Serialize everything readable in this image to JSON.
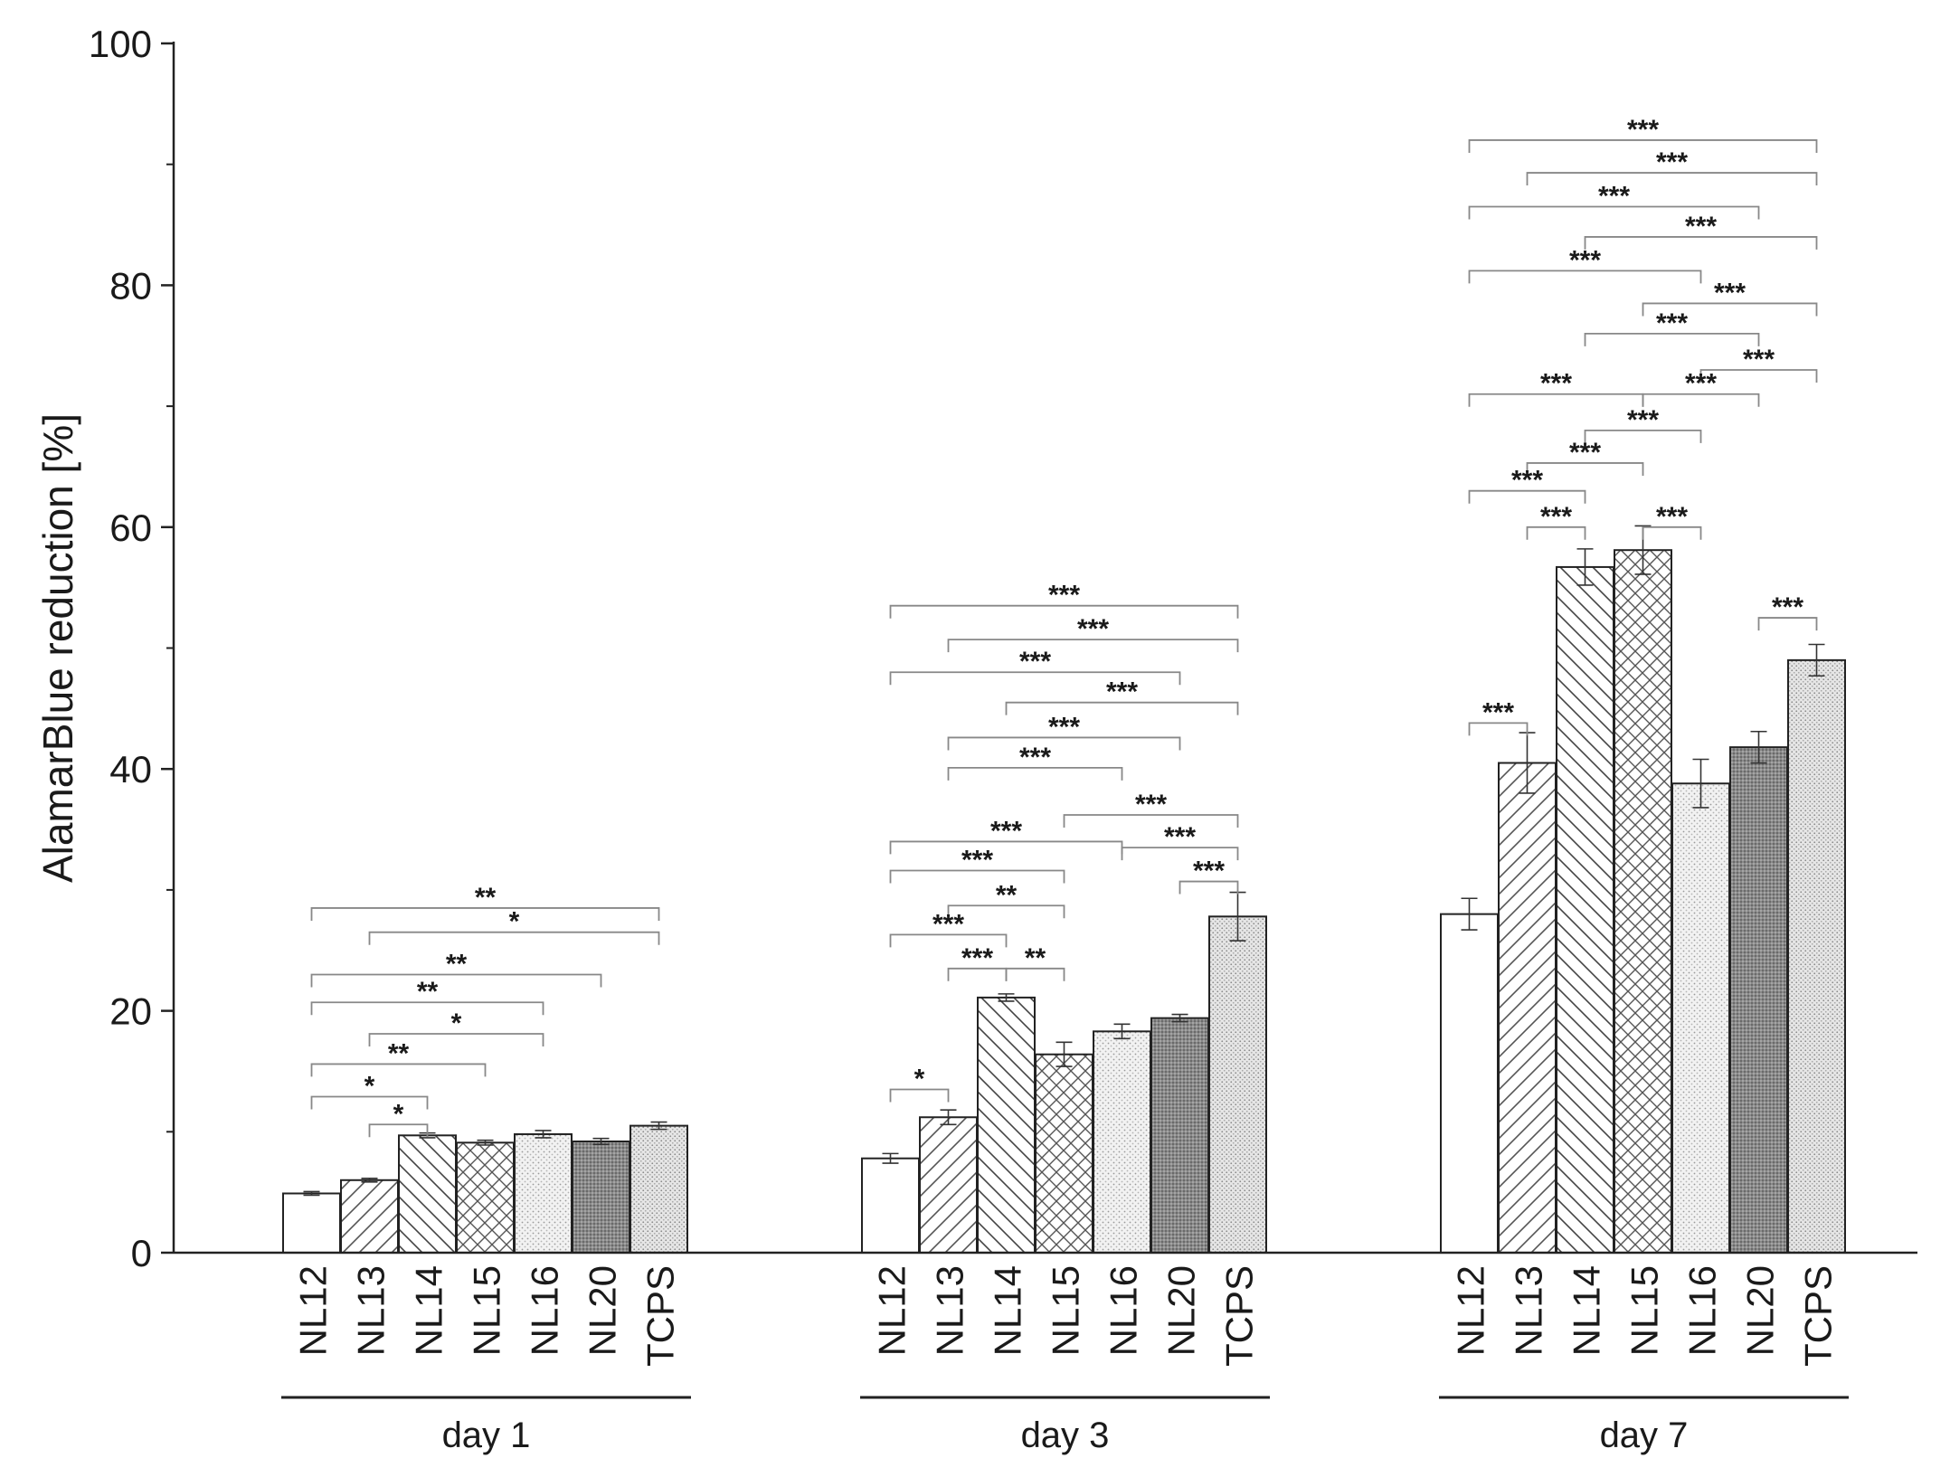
{
  "chart_data": {
    "type": "bar",
    "ylabel": "AlamarBlue reduction [%]",
    "ylim": [
      0,
      100
    ],
    "yticks": [
      "0",
      "20",
      "40",
      "60",
      "80",
      "100"
    ],
    "minor_y_step": 10,
    "grid": false,
    "categories": [
      "NL12",
      "NL13",
      "NL14",
      "NL15",
      "NL16",
      "NL20",
      "TCPS"
    ],
    "patterns": [
      "none",
      "diag-right",
      "diag-left",
      "crosshatch",
      "dots-light",
      "dense-dark",
      "dots"
    ],
    "groups": [
      {
        "name": "day 1",
        "values": [
          4.9,
          6.0,
          9.7,
          9.1,
          9.8,
          9.2,
          10.5
        ],
        "errors": [
          0.15,
          0.15,
          0.2,
          0.2,
          0.3,
          0.25,
          0.3
        ],
        "significance": [
          {
            "from": 0,
            "to": 6,
            "y": 28.5,
            "label": "**"
          },
          {
            "from": 1,
            "to": 6,
            "y": 26.5,
            "label": "*"
          },
          {
            "from": 0,
            "to": 5,
            "y": 23.0,
            "label": "**"
          },
          {
            "from": 0,
            "to": 4,
            "y": 20.7,
            "label": "**"
          },
          {
            "from": 1,
            "to": 4,
            "y": 18.1,
            "label": "*"
          },
          {
            "from": 0,
            "to": 3,
            "y": 15.6,
            "label": "**"
          },
          {
            "from": 0,
            "to": 2,
            "y": 12.9,
            "label": "*"
          },
          {
            "from": 1,
            "to": 2,
            "y": 10.6,
            "label": "*"
          }
        ]
      },
      {
        "name": "day 3",
        "values": [
          7.8,
          11.2,
          21.1,
          16.4,
          18.3,
          19.4,
          27.8
        ],
        "errors": [
          0.4,
          0.6,
          0.3,
          1.0,
          0.6,
          0.3,
          2.0
        ],
        "significance": [
          {
            "from": 0,
            "to": 6,
            "y": 53.5,
            "label": "***"
          },
          {
            "from": 1,
            "to": 6,
            "y": 50.7,
            "label": "***"
          },
          {
            "from": 0,
            "to": 5,
            "y": 48.0,
            "label": "***"
          },
          {
            "from": 2,
            "to": 6,
            "y": 45.5,
            "label": "***"
          },
          {
            "from": 1,
            "to": 5,
            "y": 42.6,
            "label": "***"
          },
          {
            "from": 1,
            "to": 4,
            "y": 40.1,
            "label": "***"
          },
          {
            "from": 3,
            "to": 6,
            "y": 36.2,
            "label": "***"
          },
          {
            "from": 0,
            "to": 4,
            "y": 34.0,
            "label": "***"
          },
          {
            "from": 4,
            "to": 6,
            "y": 33.5,
            "label": "***"
          },
          {
            "from": 0,
            "to": 3,
            "y": 31.6,
            "label": "***"
          },
          {
            "from": 5,
            "to": 6,
            "y": 30.7,
            "label": "***"
          },
          {
            "from": 1,
            "to": 3,
            "y": 28.7,
            "label": "**"
          },
          {
            "from": 0,
            "to": 2,
            "y": 26.3,
            "label": "***"
          },
          {
            "from": 1,
            "to": 2,
            "y": 23.5,
            "label": "***"
          },
          {
            "from": 2,
            "to": 3,
            "y": 23.5,
            "label": "**"
          },
          {
            "from": 0,
            "to": 1,
            "y": 13.5,
            "label": "*"
          }
        ]
      },
      {
        "name": "day 7",
        "values": [
          28.0,
          40.5,
          56.7,
          58.1,
          38.8,
          41.8,
          49.0
        ],
        "errors": [
          1.3,
          2.5,
          1.5,
          2.0,
          2.0,
          1.3,
          1.3
        ],
        "significance": [
          {
            "from": 0,
            "to": 6,
            "y": 92.0,
            "label": "***"
          },
          {
            "from": 1,
            "to": 6,
            "y": 89.3,
            "label": "***"
          },
          {
            "from": 0,
            "to": 5,
            "y": 86.5,
            "label": "***"
          },
          {
            "from": 2,
            "to": 6,
            "y": 84.0,
            "label": "***"
          },
          {
            "from": 0,
            "to": 4,
            "y": 81.2,
            "label": "***"
          },
          {
            "from": 3,
            "to": 6,
            "y": 78.5,
            "label": "***"
          },
          {
            "from": 2,
            "to": 5,
            "y": 76.0,
            "label": "***"
          },
          {
            "from": 4,
            "to": 6,
            "y": 73.0,
            "label": "***"
          },
          {
            "from": 0,
            "to": 3,
            "y": 71.0,
            "label": "***"
          },
          {
            "from": 3,
            "to": 5,
            "y": 71.0,
            "label": "***"
          },
          {
            "from": 2,
            "to": 4,
            "y": 68.0,
            "label": "***"
          },
          {
            "from": 1,
            "to": 3,
            "y": 65.3,
            "label": "***"
          },
          {
            "from": 0,
            "to": 2,
            "y": 63.0,
            "label": "***"
          },
          {
            "from": 1,
            "to": 2,
            "y": 60.0,
            "label": "***"
          },
          {
            "from": 3,
            "to": 4,
            "y": 60.0,
            "label": "***"
          },
          {
            "from": 5,
            "to": 6,
            "y": 52.5,
            "label": "***"
          },
          {
            "from": 0,
            "to": 1,
            "y": 43.8,
            "label": "***"
          }
        ]
      }
    ]
  }
}
